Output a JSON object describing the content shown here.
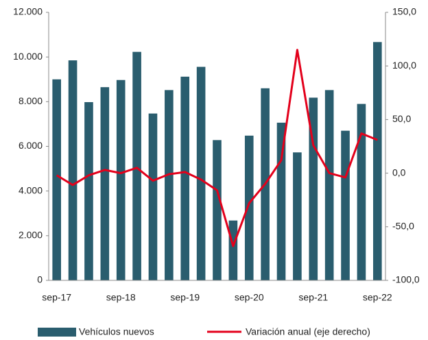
{
  "chart_data": {
    "type": "bar-line",
    "categories": [
      "sep-17",
      null,
      null,
      null,
      "sep-18",
      null,
      null,
      null,
      "sep-19",
      null,
      null,
      null,
      "sep-20",
      null,
      null,
      null,
      "sep-21",
      null,
      null,
      null,
      "sep-22"
    ],
    "series": [
      {
        "name": "Vehículos nuevos",
        "type": "bar",
        "color": "#2a5d6e",
        "values": [
          9000,
          9850,
          7980,
          8650,
          8970,
          10230,
          7470,
          8520,
          9120,
          9560,
          6280,
          2680,
          6480,
          8600,
          7060,
          5730,
          8180,
          8520,
          6700,
          7900,
          10670
        ]
      },
      {
        "name": "Variación anual (eje derecho)",
        "type": "line",
        "axis": "y2",
        "color": "#e3001b",
        "values": [
          -2,
          -11,
          -2,
          3,
          0,
          5,
          -7,
          -1,
          1,
          -6,
          -16,
          -68,
          -28,
          -10,
          12,
          115,
          26,
          0,
          -4,
          37,
          31
        ]
      }
    ],
    "ylim": [
      0,
      12000
    ],
    "yticks": [
      0,
      {
        "value": 2000,
        "label": "2.000"
      },
      {
        "value": 4000,
        "label": "4.000"
      },
      {
        "value": 6000,
        "label": "6.000"
      },
      {
        "value": 8000,
        "label": "8.000"
      },
      {
        "value": 10000,
        "label": "10.000"
      },
      {
        "value": 12000,
        "label": "12.000"
      }
    ],
    "y2lim": [
      -100,
      150
    ],
    "y2ticks": [
      {
        "value": -100,
        "label": "-100,0"
      },
      {
        "value": -50,
        "label": "-50,0"
      },
      {
        "value": 0,
        "label": "0,0"
      },
      {
        "value": 50,
        "label": "50,0"
      },
      {
        "value": 100,
        "label": "100,0"
      },
      {
        "value": 150,
        "label": "150,0"
      }
    ]
  }
}
